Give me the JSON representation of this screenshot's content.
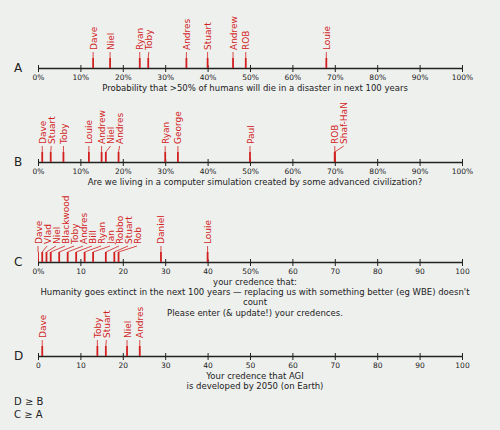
{
  "chart_data": [
    {
      "type": "strip",
      "title": "A",
      "color": "#d21f1f",
      "caption": [
        "Probability that >50% of humans will die in a disaster in next 100 years"
      ],
      "categories": [
        "Dave",
        "Niel",
        "Ryan",
        "Toby",
        "Andres",
        "Stuart",
        "Andrew",
        "ROB",
        "Louie"
      ],
      "values": [
        13,
        17,
        24,
        26,
        35,
        40,
        46,
        49,
        68
      ],
      "xlim": [
        0,
        100
      ],
      "xticks": [
        {
          "value": 0,
          "label": "0%"
        },
        {
          "value": 10,
          "label": "10%"
        },
        {
          "value": 20,
          "label": "20%"
        },
        {
          "value": 30,
          "label": "30%"
        },
        {
          "value": 40,
          "label": "40%"
        },
        {
          "value": 50,
          "label": "50%"
        },
        {
          "value": 60,
          "label": "60%"
        },
        {
          "value": 70,
          "label": "70%"
        },
        {
          "value": 80,
          "label": "80%"
        },
        {
          "value": 90,
          "label": "90%"
        },
        {
          "value": 100,
          "label": "100%"
        }
      ]
    },
    {
      "type": "strip",
      "title": "B",
      "color": "#d21f1f",
      "caption": [
        "Are we living in a computer simulation created by some advanced civilization?"
      ],
      "categories": [
        "Dave",
        "Stuart",
        "Toby",
        "Louie",
        "Andrew",
        "Niel",
        "Andres",
        "Ryan",
        "George",
        "Paul",
        "ROB",
        "Shaf-HaN"
      ],
      "values": [
        1,
        3,
        6,
        12,
        15,
        16,
        19,
        30,
        33,
        50,
        70,
        70
      ],
      "xlim": [
        0,
        100
      ],
      "xticks": [
        {
          "value": 0,
          "label": "0%"
        },
        {
          "value": 10,
          "label": "10%"
        },
        {
          "value": 20,
          "label": "20%"
        },
        {
          "value": 30,
          "label": "30%"
        },
        {
          "value": 40,
          "label": "40%"
        },
        {
          "value": 50,
          "label": "50%"
        },
        {
          "value": 60,
          "label": "60%"
        },
        {
          "value": 70,
          "label": "70%"
        },
        {
          "value": 80,
          "label": "80%"
        },
        {
          "value": 90,
          "label": "90%"
        },
        {
          "value": 100,
          "label": "100%"
        }
      ]
    },
    {
      "type": "strip",
      "title": "C",
      "color": "#d21f1f",
      "caption": [
        "your credence that:",
        "Humanity goes extinct in the next 100 years — replacing us with something better (eg WBE) doesn't count"
      ],
      "categories": [
        "Dave",
        "Vlad",
        "Niel",
        "Blackwood",
        "Toby",
        "Andres",
        "Bill",
        "Ryan",
        "Jan",
        "Robbo",
        "Stuart",
        "Rob",
        "Daniel",
        "Louie"
      ],
      "values": [
        0,
        1,
        2,
        3,
        5,
        7,
        9,
        11,
        13,
        16,
        18,
        19,
        29,
        40
      ],
      "xlim": [
        0,
        100
      ],
      "xticks": [
        {
          "value": 0,
          "label": "0%"
        },
        10,
        20,
        30,
        40,
        {
          "value": 50,
          "label": "50%"
        },
        60,
        70,
        80,
        90,
        100
      ]
    },
    {
      "type": "strip",
      "title": "D",
      "color": "#d21f1f",
      "caption": [
        "Your credence that AGI",
        "is developed by 2050 (on Earth)"
      ],
      "categories": [
        "Dave",
        "Toby",
        "Stuart",
        "Niel",
        "Andres"
      ],
      "values": [
        1,
        14,
        16,
        21,
        24
      ],
      "xlim": [
        0,
        100
      ],
      "xticks": [
        0,
        10,
        20,
        30,
        40,
        50,
        60,
        70,
        80,
        90,
        100
      ]
    }
  ],
  "notes": [
    "Please enter (& update!) your credences.",
    "D ≥ B",
    "C ≥ A"
  ]
}
